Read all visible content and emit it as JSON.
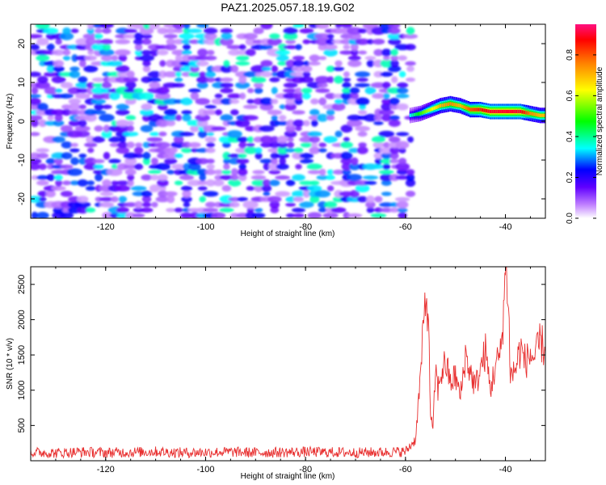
{
  "title": "PAZ1.2025.057.18.19.G02",
  "chart_data": [
    {
      "type": "heatmap",
      "xlabel": "Height of straight line (km)",
      "ylabel": "Frequency (Hz)",
      "xlim": [
        -135,
        -32
      ],
      "ylim": [
        -25,
        25
      ],
      "x_ticks": [
        -120,
        -100,
        -80,
        -60,
        -40
      ],
      "y_ticks": [
        -20,
        -10,
        0,
        10,
        20
      ],
      "colorbar": {
        "label": "Normalized spectral amplitude",
        "range": [
          0.0,
          0.95
        ],
        "ticks": [
          0.0,
          0.2,
          0.4,
          0.6,
          0.8
        ]
      },
      "noise_region": {
        "x_range": [
          -135,
          -59
        ],
        "typical_amplitude": [
          0.05,
          0.35
        ]
      },
      "signal_ridge": {
        "x": [
          -59,
          -57,
          -55,
          -53,
          -51,
          -49,
          -47,
          -45,
          -43,
          -41,
          -39,
          -37,
          -35,
          -33
        ],
        "frequency": [
          1.5,
          2.0,
          3.0,
          4.0,
          4.5,
          4.0,
          3.0,
          3.0,
          2.5,
          2.5,
          2.5,
          2.5,
          2.0,
          1.5
        ],
        "amplitude": [
          0.35,
          0.5,
          0.6,
          0.7,
          0.75,
          0.7,
          0.8,
          0.85,
          0.9,
          0.9,
          0.9,
          0.9,
          0.75,
          0.7
        ]
      }
    },
    {
      "type": "line",
      "xlabel": "Height of straight line (km)",
      "ylabel": "SNR (10 * v/v)",
      "xlim": [
        -135,
        -32
      ],
      "ylim": [
        0,
        2750
      ],
      "x_ticks": [
        -120,
        -100,
        -80,
        -60,
        -40
      ],
      "y_ticks": [
        500,
        1000,
        1500,
        2000,
        2500
      ],
      "color": "#e83030",
      "series": [
        {
          "x": [
            -135,
            -130,
            -125,
            -120,
            -115,
            -110,
            -105,
            -100,
            -95,
            -90,
            -85,
            -80,
            -75,
            -70,
            -65,
            -60,
            -58,
            -57,
            -56,
            -55.5,
            -55,
            -54.5,
            -54,
            -53.5,
            -53,
            -52,
            -51,
            -50,
            -49,
            -48,
            -47,
            -46,
            -45,
            -44,
            -43,
            -42,
            -41,
            -40.5,
            -40,
            -39.5,
            -39,
            -38,
            -37,
            -36,
            -35,
            -34,
            -33,
            -32
          ],
          "y": [
            120,
            110,
            125,
            115,
            120,
            130,
            115,
            120,
            125,
            115,
            120,
            125,
            120,
            115,
            120,
            130,
            300,
            1200,
            2300,
            2200,
            700,
            400,
            1300,
            1000,
            1200,
            1400,
            1100,
            1200,
            900,
            1500,
            1250,
            1050,
            1300,
            1550,
            1000,
            1350,
            1500,
            2000,
            2700,
            2500,
            1200,
            1300,
            1600,
            1400,
            1500,
            1450,
            1700,
            1550
          ]
        }
      ]
    }
  ]
}
